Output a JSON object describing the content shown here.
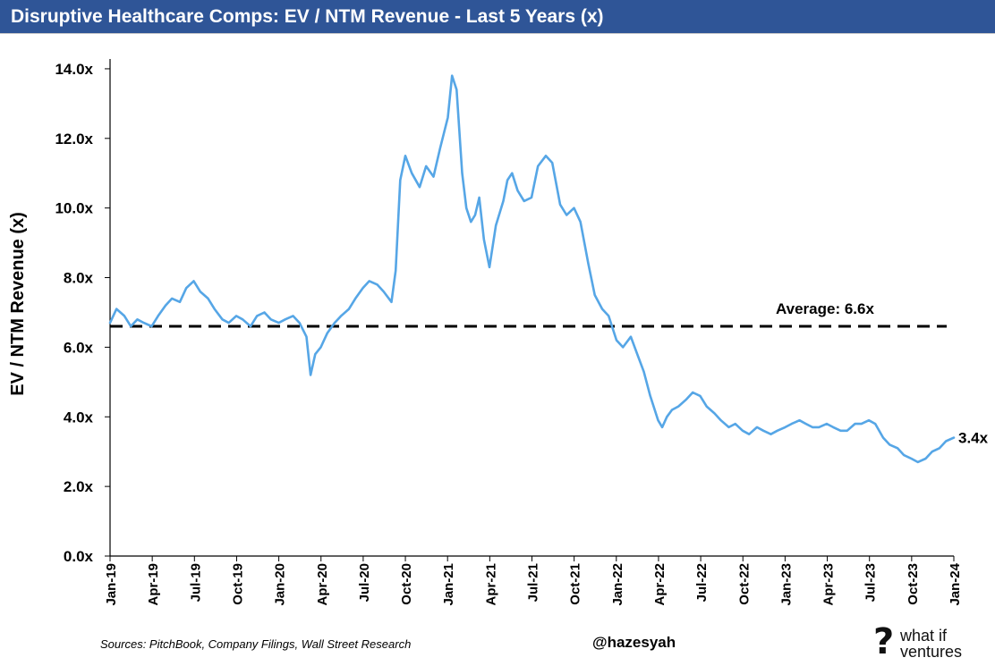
{
  "header": {
    "title": "Disruptive Healthcare Comps: EV / NTM Revenue - Last 5 Years (x)"
  },
  "footer": {
    "source": "Sources: PitchBook, Company Filings, Wall Street Research",
    "handle": "@hazesyah",
    "logo_line1": "what if",
    "logo_line2": "ventures"
  },
  "chart_data": {
    "type": "line",
    "title": "Disruptive Healthcare Comps: EV / NTM Revenue - Last 5 Years (x)",
    "xlabel": "",
    "ylabel": "EV / NTM Revenue (x)",
    "ylim": [
      0,
      15
    ],
    "yticks": [
      0,
      2,
      4,
      6,
      8,
      10,
      12,
      14
    ],
    "ytick_labels": [
      "0.0x",
      "2.0x",
      "4.0x",
      "6.0x",
      "8.0x",
      "10.0x",
      "12.0x",
      "14.0x"
    ],
    "xlim": [
      "2019-01-01",
      "2024-01-01"
    ],
    "xtick_labels": [
      "Jan-19",
      "Apr-19",
      "Jul-19",
      "Oct-19",
      "Jan-20",
      "Apr-20",
      "Jul-20",
      "Oct-20",
      "Jan-21",
      "Apr-21",
      "Jul-21",
      "Oct-21",
      "Jan-22",
      "Apr-22",
      "Jul-22",
      "Oct-22",
      "Jan-23",
      "Apr-23",
      "Jul-23",
      "Oct-23",
      "Jan-24"
    ],
    "grid": false,
    "line_color": "#56a6e6",
    "average_line": {
      "value": 6.6,
      "label": "Average: 6.6x",
      "style": "dashed",
      "color": "#000000"
    },
    "end_label": "3.4x",
    "series": [
      {
        "x": [
          "2019-01-01",
          "2019-01-15",
          "2019-02-01",
          "2019-02-15",
          "2019-03-01",
          "2019-03-15",
          "2019-04-01",
          "2019-04-15",
          "2019-05-01",
          "2019-05-15",
          "2019-06-01",
          "2019-06-15",
          "2019-07-01",
          "2019-07-15",
          "2019-08-01",
          "2019-08-15",
          "2019-09-01",
          "2019-09-15",
          "2019-10-01",
          "2019-10-15",
          "2019-11-01",
          "2019-11-15",
          "2019-12-01",
          "2019-12-15",
          "2020-01-01",
          "2020-01-15",
          "2020-02-01",
          "2020-02-15",
          "2020-03-01",
          "2020-03-10",
          "2020-03-20",
          "2020-04-01",
          "2020-04-15",
          "2020-05-01",
          "2020-05-15",
          "2020-06-01",
          "2020-06-15",
          "2020-07-01",
          "2020-07-15",
          "2020-08-01",
          "2020-08-15",
          "2020-09-01",
          "2020-09-10",
          "2020-09-20",
          "2020-10-01",
          "2020-10-15",
          "2020-11-01",
          "2020-11-15",
          "2020-12-01",
          "2020-12-15",
          "2021-01-01",
          "2021-01-10",
          "2021-01-20",
          "2021-02-01",
          "2021-02-10",
          "2021-02-20",
          "2021-03-01",
          "2021-03-10",
          "2021-03-20",
          "2021-04-01",
          "2021-04-15",
          "2021-05-01",
          "2021-05-10",
          "2021-05-20",
          "2021-06-01",
          "2021-06-15",
          "2021-07-01",
          "2021-07-15",
          "2021-08-01",
          "2021-08-15",
          "2021-09-01",
          "2021-09-15",
          "2021-10-01",
          "2021-10-15",
          "2021-11-01",
          "2021-11-15",
          "2021-12-01",
          "2021-12-15",
          "2022-01-01",
          "2022-01-15",
          "2022-02-01",
          "2022-02-15",
          "2022-03-01",
          "2022-03-15",
          "2022-04-01",
          "2022-04-10",
          "2022-04-20",
          "2022-05-01",
          "2022-05-15",
          "2022-06-01",
          "2022-06-15",
          "2022-07-01",
          "2022-07-15",
          "2022-08-01",
          "2022-08-15",
          "2022-09-01",
          "2022-09-15",
          "2022-10-01",
          "2022-10-15",
          "2022-11-01",
          "2022-11-15",
          "2022-12-01",
          "2022-12-15",
          "2023-01-01",
          "2023-01-15",
          "2023-02-01",
          "2023-02-15",
          "2023-03-01",
          "2023-03-15",
          "2023-04-01",
          "2023-04-15",
          "2023-05-01",
          "2023-05-15",
          "2023-06-01",
          "2023-06-15",
          "2023-07-01",
          "2023-07-15",
          "2023-08-01",
          "2023-08-15",
          "2023-09-01",
          "2023-09-15",
          "2023-10-01",
          "2023-10-15",
          "2023-11-01",
          "2023-11-15",
          "2023-12-01",
          "2023-12-15",
          "2024-01-01"
        ],
        "values": [
          6.7,
          7.1,
          6.9,
          6.6,
          6.8,
          6.7,
          6.6,
          6.9,
          7.2,
          7.4,
          7.3,
          7.7,
          7.9,
          7.6,
          7.4,
          7.1,
          6.8,
          6.7,
          6.9,
          6.8,
          6.6,
          6.9,
          7.0,
          6.8,
          6.7,
          6.8,
          6.9,
          6.7,
          6.3,
          5.2,
          5.8,
          6.0,
          6.4,
          6.7,
          6.9,
          7.1,
          7.4,
          7.7,
          7.9,
          7.8,
          7.6,
          7.3,
          8.2,
          10.8,
          11.5,
          11.0,
          10.6,
          11.2,
          10.9,
          11.7,
          12.6,
          13.8,
          13.4,
          11.0,
          10.0,
          9.6,
          9.8,
          10.3,
          9.1,
          8.3,
          9.5,
          10.2,
          10.8,
          11.0,
          10.5,
          10.2,
          10.3,
          11.2,
          11.5,
          11.3,
          10.1,
          9.8,
          10.0,
          9.6,
          8.4,
          7.5,
          7.1,
          6.9,
          6.2,
          6.0,
          6.3,
          5.8,
          5.3,
          4.6,
          3.9,
          3.7,
          4.0,
          4.2,
          4.3,
          4.5,
          4.7,
          4.6,
          4.3,
          4.1,
          3.9,
          3.7,
          3.8,
          3.6,
          3.5,
          3.7,
          3.6,
          3.5,
          3.6,
          3.7,
          3.8,
          3.9,
          3.8,
          3.7,
          3.7,
          3.8,
          3.7,
          3.6,
          3.6,
          3.8,
          3.8,
          3.9,
          3.8,
          3.4,
          3.2,
          3.1,
          2.9,
          2.8,
          2.7,
          2.8,
          3.0,
          3.1,
          3.3,
          3.4
        ]
      }
    ]
  }
}
